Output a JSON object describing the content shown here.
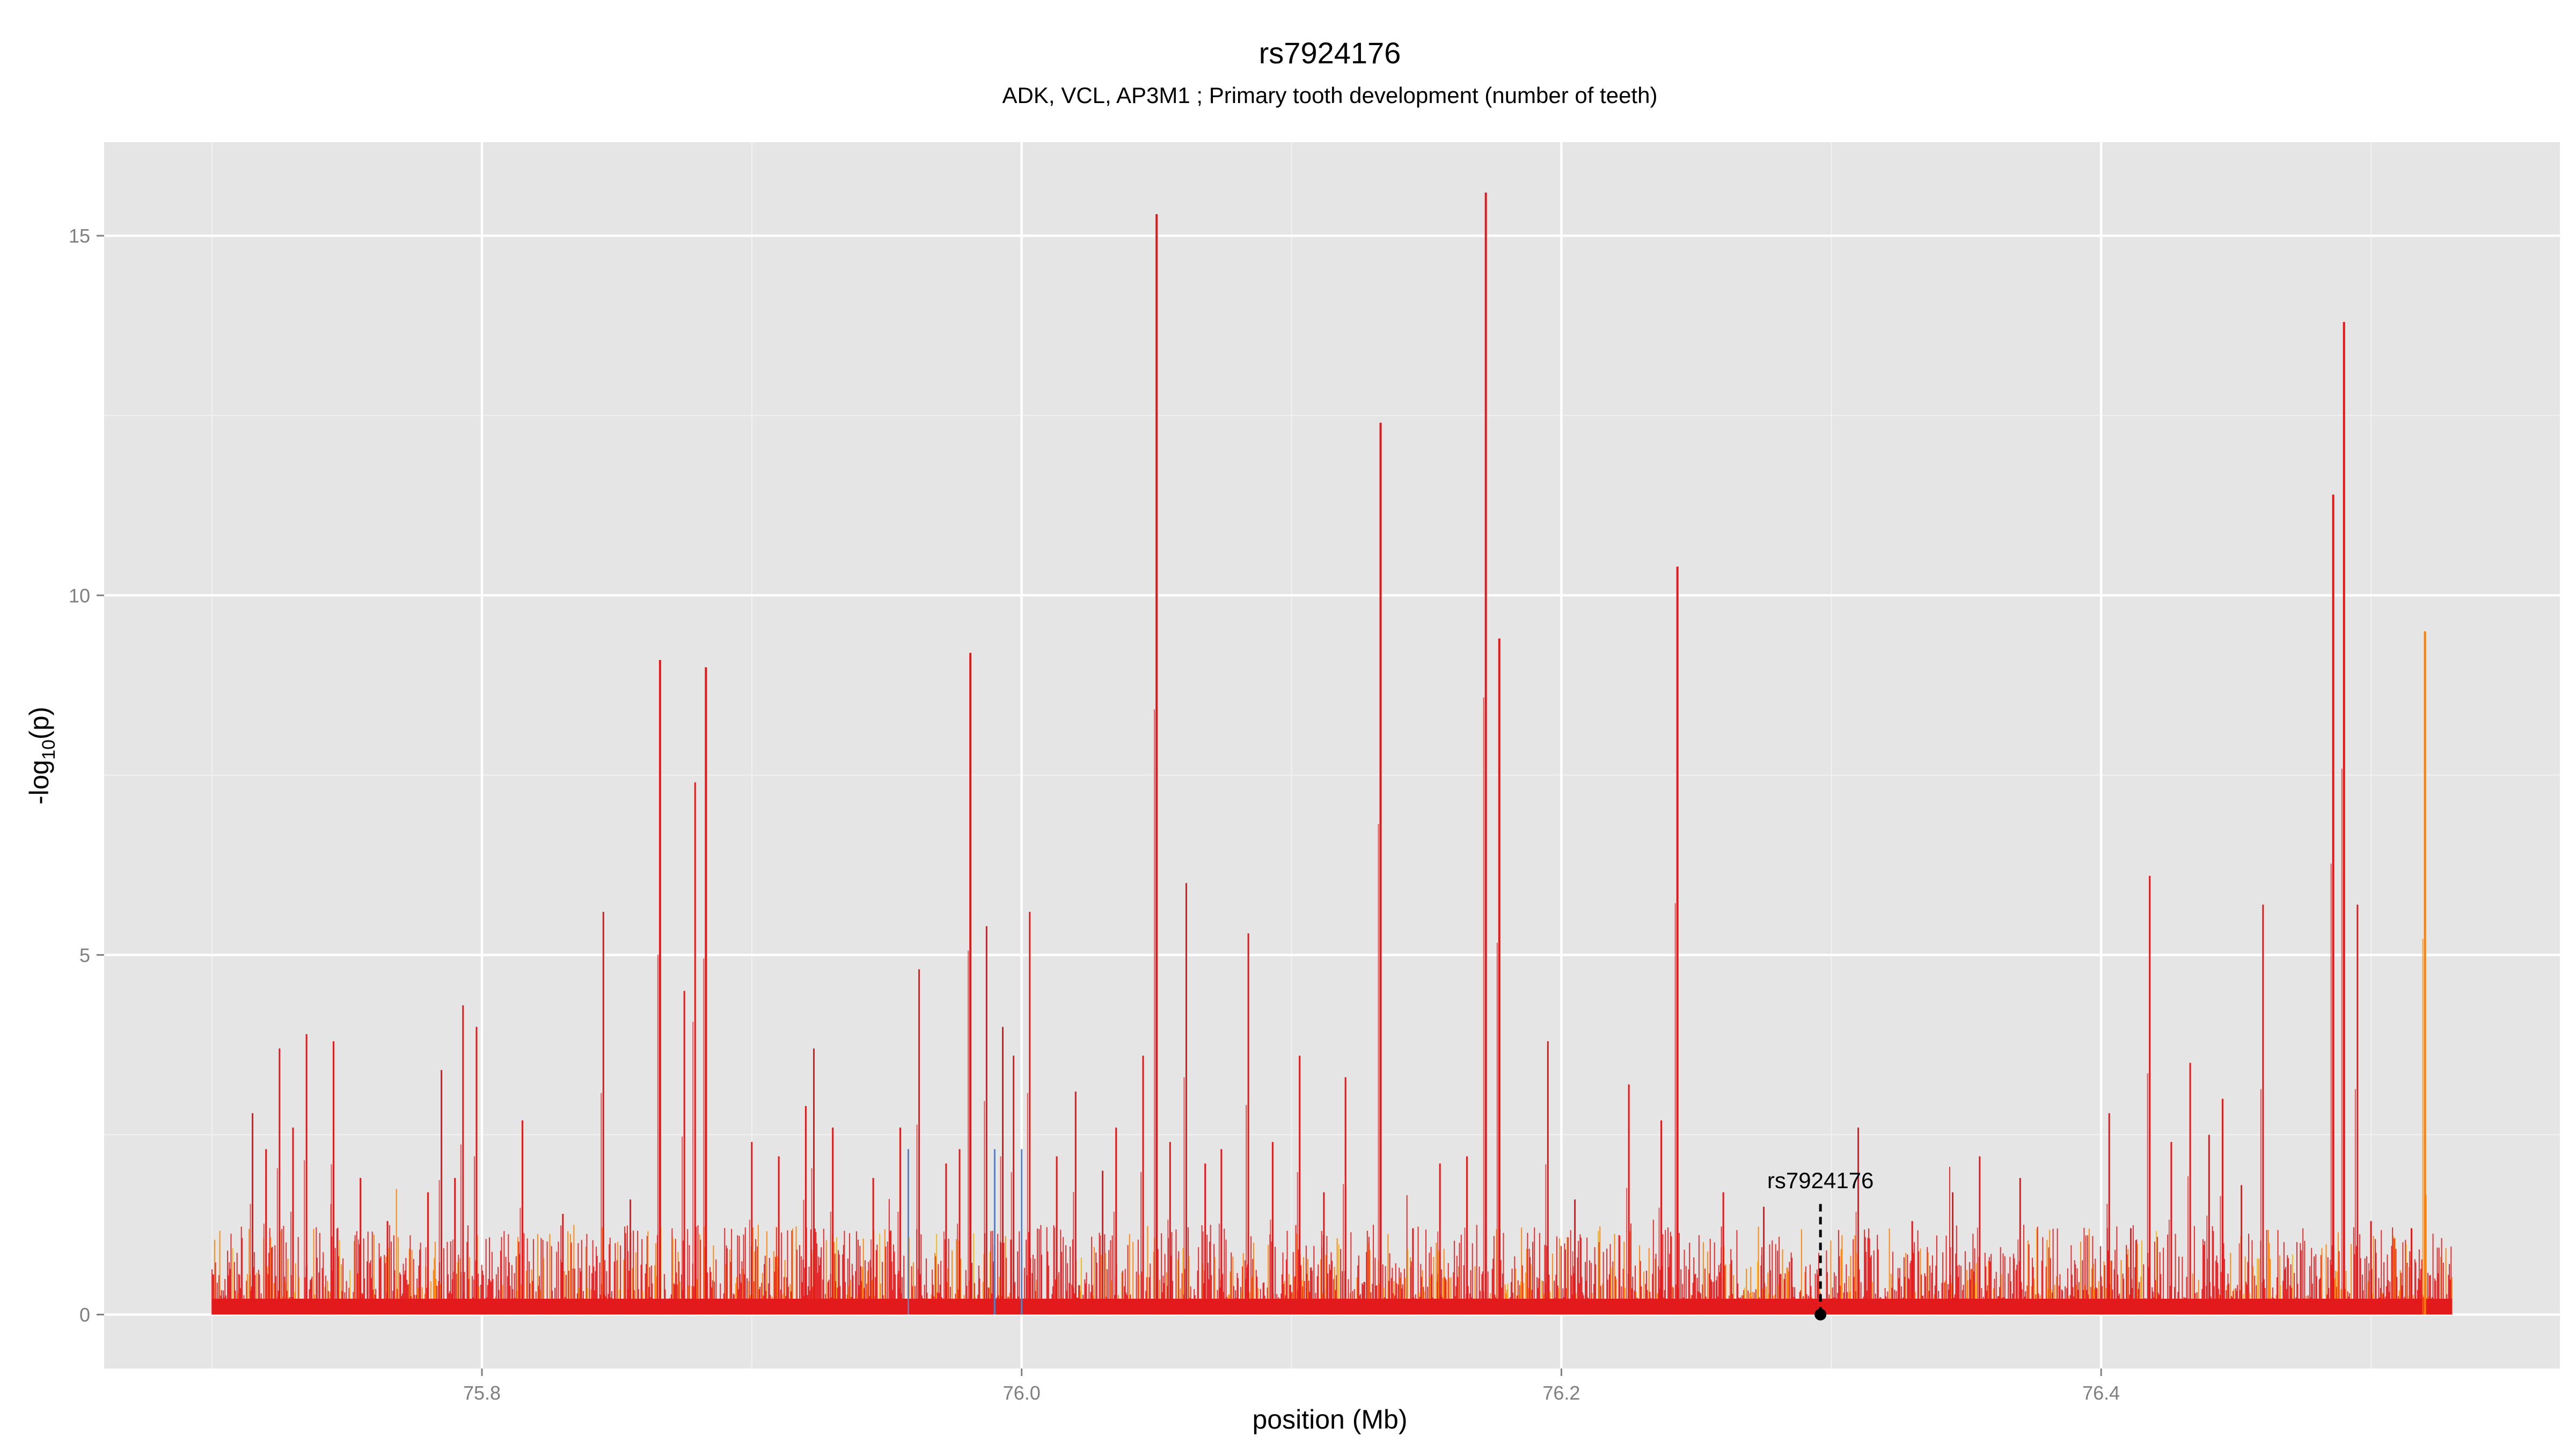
{
  "chart_data": {
    "type": "area",
    "title": "rs7924176",
    "subtitle": "ADK, VCL, AP3M1 ; Primary tooth development (number of teeth)",
    "xlabel": "position (Mb)",
    "ylabel_main": "-log",
    "ylabel_sub": "10",
    "ylabel_tail": "(p)",
    "xlim": [
      75.66,
      76.57
    ],
    "ylim": [
      -0.75,
      16.3
    ],
    "x_ticks": [
      75.8,
      76.0,
      76.2,
      76.4
    ],
    "x_tick_labels": [
      "75.8",
      "76.0",
      "76.2",
      "76.4"
    ],
    "y_ticks": [
      0,
      5,
      10,
      15
    ],
    "y_tick_labels": [
      "0",
      "5",
      "10",
      "15"
    ],
    "grid": true,
    "background": "#e5e5e5",
    "colors": {
      "main": "#e31a1c",
      "secondary": "#ff7f00",
      "accent": "#f4b400",
      "minor": "#5b7fbf"
    },
    "snp_marker": {
      "label": "rs7924176",
      "x": 76.296,
      "y": 0,
      "line_top": 1.55
    },
    "x_range": [
      75.7,
      76.53
    ],
    "peaks": [
      {
        "x": 75.715,
        "y": 2.8
      },
      {
        "x": 75.72,
        "y": 2.3
      },
      {
        "x": 75.725,
        "y": 3.7
      },
      {
        "x": 75.73,
        "y": 2.6
      },
      {
        "x": 75.735,
        "y": 3.9
      },
      {
        "x": 75.745,
        "y": 3.8
      },
      {
        "x": 75.755,
        "y": 1.9
      },
      {
        "x": 75.765,
        "y": 1.3
      },
      {
        "x": 75.78,
        "y": 1.7
      },
      {
        "x": 75.785,
        "y": 3.4
      },
      {
        "x": 75.79,
        "y": 1.9
      },
      {
        "x": 75.793,
        "y": 4.3
      },
      {
        "x": 75.798,
        "y": 4.0
      },
      {
        "x": 75.815,
        "y": 2.7
      },
      {
        "x": 75.83,
        "y": 1.4
      },
      {
        "x": 75.845,
        "y": 5.6
      },
      {
        "x": 75.855,
        "y": 1.6
      },
      {
        "x": 75.866,
        "y": 9.1
      },
      {
        "x": 75.875,
        "y": 4.5
      },
      {
        "x": 75.879,
        "y": 7.4
      },
      {
        "x": 75.883,
        "y": 9.0
      },
      {
        "x": 75.9,
        "y": 2.4
      },
      {
        "x": 75.91,
        "y": 2.2
      },
      {
        "x": 75.92,
        "y": 2.9
      },
      {
        "x": 75.923,
        "y": 3.7
      },
      {
        "x": 75.93,
        "y": 2.6
      },
      {
        "x": 75.945,
        "y": 1.9
      },
      {
        "x": 75.955,
        "y": 2.6
      },
      {
        "x": 75.962,
        "y": 4.8
      },
      {
        "x": 75.972,
        "y": 2.1
      },
      {
        "x": 75.977,
        "y": 2.3
      },
      {
        "x": 75.981,
        "y": 9.2
      },
      {
        "x": 75.987,
        "y": 5.4
      },
      {
        "x": 75.993,
        "y": 4.0
      },
      {
        "x": 75.997,
        "y": 3.6
      },
      {
        "x": 76.003,
        "y": 5.6
      },
      {
        "x": 76.013,
        "y": 2.2
      },
      {
        "x": 76.02,
        "y": 3.1
      },
      {
        "x": 76.03,
        "y": 2.0
      },
      {
        "x": 76.035,
        "y": 2.6
      },
      {
        "x": 76.045,
        "y": 3.6
      },
      {
        "x": 76.05,
        "y": 15.3
      },
      {
        "x": 76.055,
        "y": 2.4
      },
      {
        "x": 76.061,
        "y": 6.0
      },
      {
        "x": 76.068,
        "y": 2.1
      },
      {
        "x": 76.074,
        "y": 2.3
      },
      {
        "x": 76.084,
        "y": 5.3
      },
      {
        "x": 76.093,
        "y": 2.4
      },
      {
        "x": 76.103,
        "y": 3.6
      },
      {
        "x": 76.112,
        "y": 1.7
      },
      {
        "x": 76.12,
        "y": 3.3
      },
      {
        "x": 76.133,
        "y": 12.4
      },
      {
        "x": 76.145,
        "y": 1.2
      },
      {
        "x": 76.155,
        "y": 2.1
      },
      {
        "x": 76.165,
        "y": 2.2
      },
      {
        "x": 76.172,
        "y": 15.6
      },
      {
        "x": 76.177,
        "y": 9.4
      },
      {
        "x": 76.195,
        "y": 3.8
      },
      {
        "x": 76.205,
        "y": 1.6
      },
      {
        "x": 76.225,
        "y": 3.2
      },
      {
        "x": 76.237,
        "y": 2.7
      },
      {
        "x": 76.243,
        "y": 10.4
      },
      {
        "x": 76.26,
        "y": 1.7
      },
      {
        "x": 76.275,
        "y": 1.5
      },
      {
        "x": 76.31,
        "y": 2.6
      },
      {
        "x": 76.33,
        "y": 1.3
      },
      {
        "x": 76.345,
        "y": 1.7
      },
      {
        "x": 76.355,
        "y": 2.2
      },
      {
        "x": 76.37,
        "y": 1.9
      },
      {
        "x": 76.403,
        "y": 2.8
      },
      {
        "x": 76.411,
        "y": 1.2
      },
      {
        "x": 76.418,
        "y": 6.1
      },
      {
        "x": 76.426,
        "y": 2.4
      },
      {
        "x": 76.433,
        "y": 3.5
      },
      {
        "x": 76.44,
        "y": 2.5
      },
      {
        "x": 76.445,
        "y": 3.0
      },
      {
        "x": 76.452,
        "y": 1.8
      },
      {
        "x": 76.46,
        "y": 5.7
      },
      {
        "x": 76.486,
        "y": 11.4
      },
      {
        "x": 76.49,
        "y": 13.8
      },
      {
        "x": 76.495,
        "y": 5.7
      },
      {
        "x": 76.5,
        "y": 1.3
      },
      {
        "x": 76.515,
        "y": 1.2
      },
      {
        "x": 76.52,
        "y": 9.5
      }
    ]
  }
}
